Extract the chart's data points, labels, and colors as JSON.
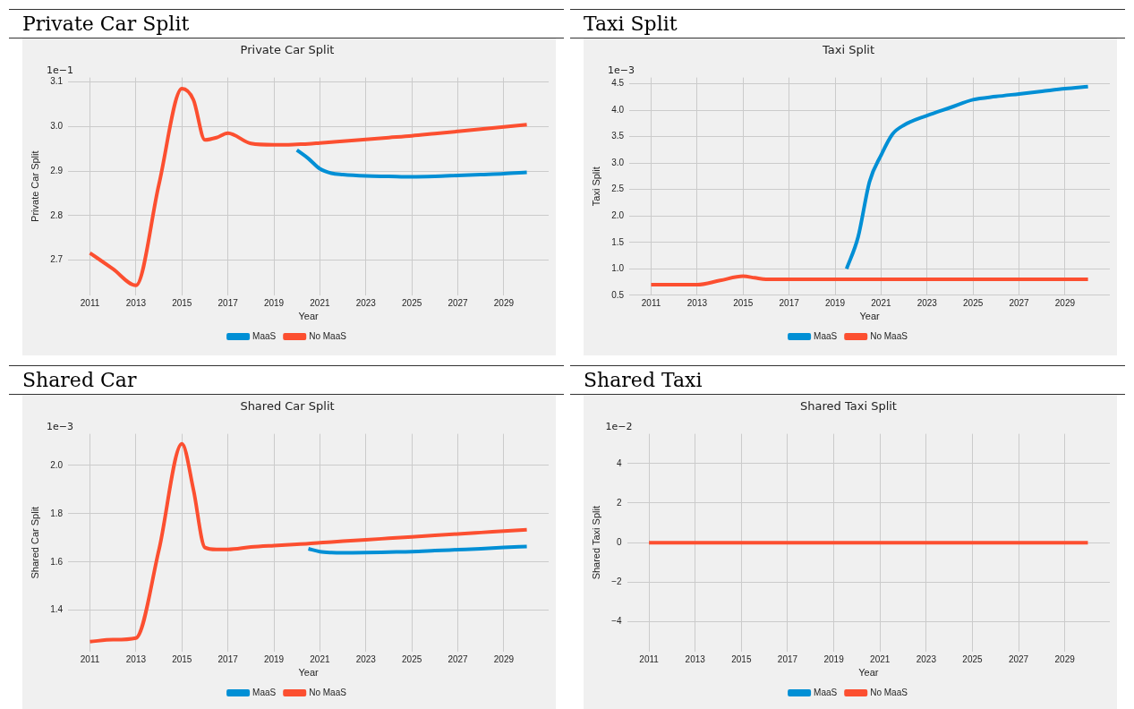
{
  "chart_data": [
    {
      "type": "line",
      "title": "Private Car Split",
      "subtitle": "Private Car Split",
      "xlabel": "Year",
      "ylabel": "Private Car Split",
      "annotations": [
        "1e−1"
      ],
      "xlim": [
        2010.05,
        2030.95
      ],
      "xticks": [
        2011,
        2013,
        2015,
        2017,
        2019,
        2021,
        2023,
        2025,
        2027,
        2029
      ],
      "ylim": [
        2.621,
        3.11
      ],
      "yticks": [
        2.7,
        2.8,
        2.9,
        {
          "value": 3,
          "label": "3.0"
        },
        3.1
      ],
      "grid": true,
      "legend": "bottom",
      "series": [
        {
          "name": "MaaS",
          "color": "#008fd5",
          "x": [
            2020,
            2020.5,
            2021,
            2021.5,
            2022,
            2023,
            2024,
            2025,
            2026,
            2027,
            2028,
            2029,
            2030
          ],
          "values": [
            2.947,
            2.928,
            2.905,
            2.895,
            2.892,
            2.889,
            2.888,
            2.887,
            2.888,
            2.89,
            2.892,
            2.894,
            2.897
          ]
        },
        {
          "name": "No MaaS",
          "color": "#fc4f30",
          "x": [
            2011,
            2012,
            2013,
            2014,
            2015,
            2015.5,
            2016,
            2016.5,
            2017,
            2018,
            2019,
            2019.5,
            2020,
            2020.5,
            2021,
            2021.5,
            2022,
            2023,
            2024,
            2025,
            2026,
            2027,
            2028,
            2029,
            2030
          ],
          "values": [
            2.716,
            2.68,
            2.643,
            2.87,
            3.085,
            3.06,
            2.97,
            2.975,
            2.985,
            2.962,
            2.959,
            2.959,
            2.96,
            2.961,
            2.963,
            2.965,
            2.967,
            2.971,
            2.975,
            2.979,
            2.984,
            2.989,
            2.994,
            2.999,
            3.004
          ]
        }
      ]
    },
    {
      "type": "line",
      "title": "Taxi Split",
      "subtitle": "Taxi Split",
      "xlabel": "Year",
      "ylabel": "Taxi Split",
      "annotations": [
        "1e−3"
      ],
      "xlim": [
        2010.05,
        2030.95
      ],
      "xticks": [
        2011,
        2013,
        2015,
        2017,
        2019,
        2021,
        2023,
        2025,
        2027,
        2029
      ],
      "ylim": [
        0.5,
        4.62
      ],
      "yticks": [
        0.5,
        {
          "value": 1,
          "label": "1.0"
        },
        1.5,
        {
          "value": 2,
          "label": "2.0"
        },
        2.5,
        {
          "value": 3,
          "label": "3.0"
        },
        3.5,
        {
          "value": 4,
          "label": "4.0"
        },
        4.5
      ],
      "grid": true,
      "legend": "bottom",
      "series": [
        {
          "name": "MaaS",
          "color": "#008fd5",
          "x": [
            2019.5,
            2020,
            2020.5,
            2021,
            2021.5,
            2022,
            2023,
            2024,
            2025,
            2026,
            2027,
            2028,
            2029,
            2030
          ],
          "values": [
            1.0,
            1.6,
            2.65,
            3.15,
            3.55,
            3.72,
            3.9,
            4.05,
            4.2,
            4.26,
            4.31,
            4.36,
            4.41,
            4.45
          ]
        },
        {
          "name": "No MaaS",
          "color": "#fc4f30",
          "x": [
            2011,
            2012,
            2013,
            2014,
            2015,
            2015.5,
            2016,
            2017,
            2018,
            2019,
            2020,
            2021,
            2022,
            2023,
            2024,
            2025,
            2026,
            2027,
            2028,
            2029,
            2030
          ],
          "values": [
            0.7,
            0.7,
            0.7,
            0.78,
            0.86,
            0.83,
            0.8,
            0.8,
            0.8,
            0.8,
            0.8,
            0.8,
            0.8,
            0.8,
            0.8,
            0.8,
            0.8,
            0.8,
            0.8,
            0.8,
            0.8
          ]
        }
      ]
    },
    {
      "type": "line",
      "title": "Shared Car",
      "subtitle": "Shared Car Split",
      "xlabel": "Year",
      "ylabel": "Shared Car Split",
      "annotations": [
        "1e−3"
      ],
      "xlim": [
        2010.05,
        2030.95
      ],
      "xticks": [
        2011,
        2013,
        2015,
        2017,
        2019,
        2021,
        2023,
        2025,
        2027,
        2029
      ],
      "ylim": [
        1.229,
        2.131
      ],
      "yticks": [
        1.4,
        1.6,
        1.8,
        {
          "value": 2,
          "label": "2.0"
        }
      ],
      "grid": true,
      "legend": "bottom",
      "series": [
        {
          "name": "MaaS",
          "color": "#008fd5",
          "x": [
            2020.5,
            2021,
            2021.5,
            2022,
            2023,
            2024,
            2025,
            2026,
            2027,
            2028,
            2029,
            2030
          ],
          "values": [
            1.655,
            1.643,
            1.639,
            1.638,
            1.639,
            1.641,
            1.643,
            1.647,
            1.651,
            1.655,
            1.66,
            1.664
          ]
        },
        {
          "name": "No MaaS",
          "color": "#fc4f30",
          "x": [
            2011,
            2012,
            2013,
            2014,
            2015,
            2015.5,
            2016,
            2016.5,
            2017,
            2018,
            2019,
            2020,
            2020.5,
            2021,
            2021.5,
            2022,
            2023,
            2024,
            2025,
            2026,
            2027,
            2028,
            2029,
            2030
          ],
          "values": [
            1.27,
            1.278,
            1.285,
            1.65,
            2.09,
            1.9,
            1.66,
            1.652,
            1.652,
            1.662,
            1.668,
            1.673,
            1.676,
            1.68,
            1.683,
            1.686,
            1.692,
            1.698,
            1.704,
            1.71,
            1.716,
            1.722,
            1.728,
            1.734
          ]
        }
      ]
    },
    {
      "type": "line",
      "title": "Shared Taxi",
      "subtitle": "Shared Taxi Split",
      "xlabel": "Year",
      "ylabel": "Shared Taxi Split",
      "annotations": [
        "1e−2"
      ],
      "xlim": [
        2010.05,
        2030.95
      ],
      "xticks": [
        2011,
        2013,
        2015,
        2017,
        2019,
        2021,
        2023,
        2025,
        2027,
        2029
      ],
      "ylim": [
        -5.5,
        5.5
      ],
      "yticks": [
        {
          "value": -4,
          "label": "−4"
        },
        {
          "value": -2,
          "label": "−2"
        },
        0,
        2,
        4
      ],
      "grid": true,
      "legend": "bottom",
      "series": [
        {
          "name": "MaaS",
          "color": "#008fd5"
        },
        {
          "name": "No MaaS",
          "color": "#fc4f30",
          "x": [
            2011,
            2012,
            2013,
            2014,
            2015,
            2016,
            2017,
            2018,
            2019,
            2020,
            2021,
            2022,
            2023,
            2024,
            2025,
            2026,
            2027,
            2028,
            2029,
            2030
          ],
          "values": [
            0,
            0,
            0,
            0,
            0,
            0,
            0,
            0,
            0,
            0,
            0,
            0,
            0,
            0,
            0,
            0,
            0,
            0,
            0,
            0
          ]
        }
      ]
    }
  ]
}
